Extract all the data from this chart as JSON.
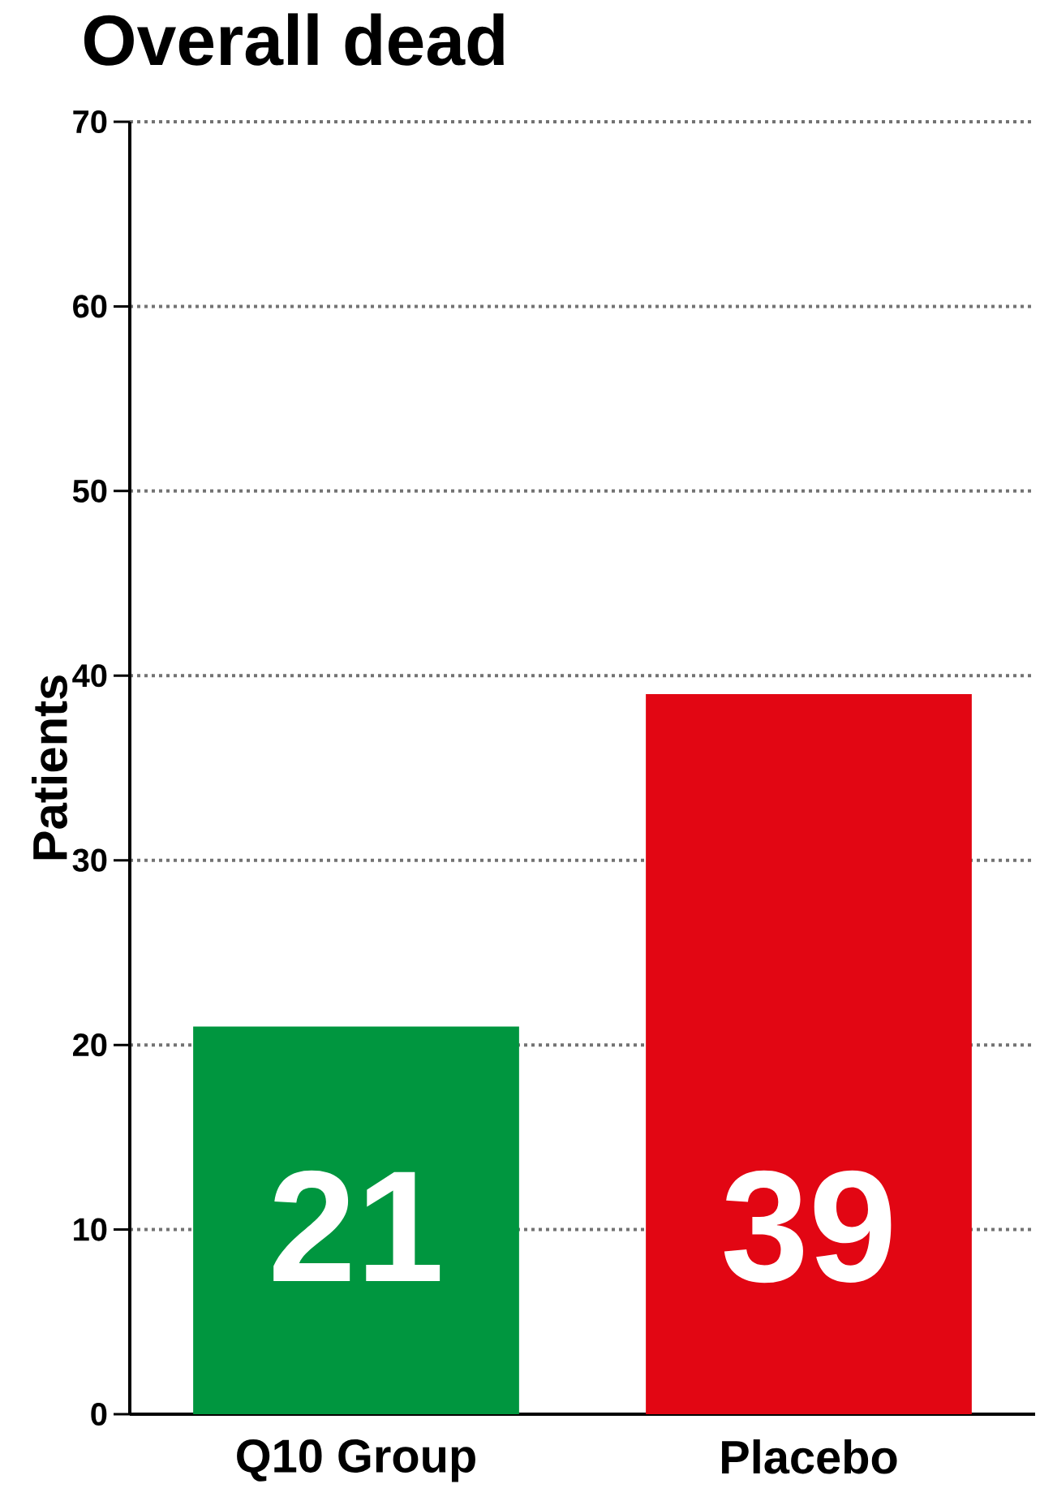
{
  "chart_data": {
    "type": "bar",
    "title": "Overall dead",
    "ylabel": "Patients",
    "categories": [
      "Q10 Group",
      "Placebo"
    ],
    "values": [
      21,
      39
    ],
    "colors": [
      "#00963f",
      "#e20613"
    ],
    "ylim": [
      0,
      70
    ],
    "yticks": [
      0,
      10,
      20,
      30,
      40,
      50,
      60,
      70
    ],
    "grid": "y",
    "data_labels": true
  }
}
